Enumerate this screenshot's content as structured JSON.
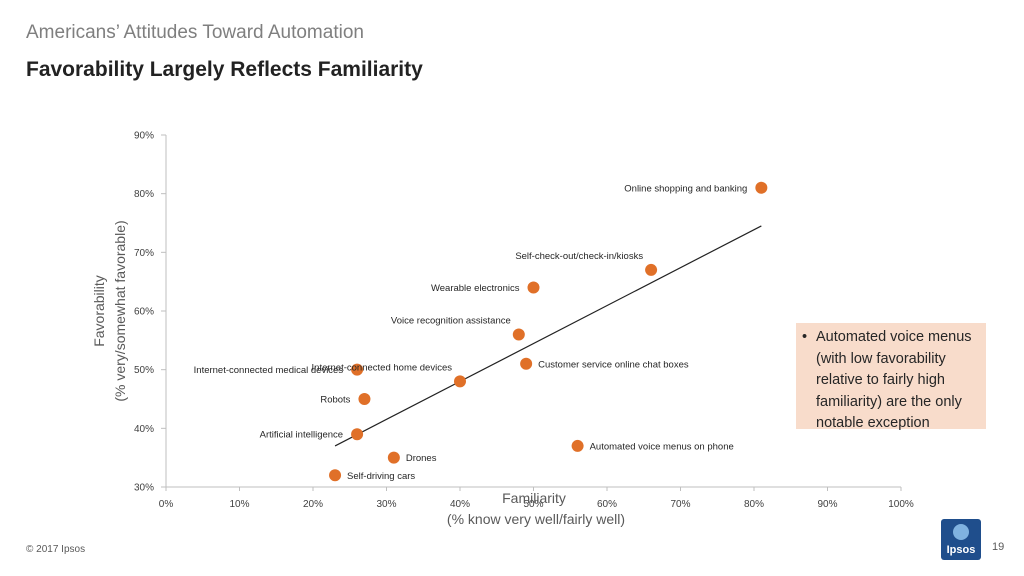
{
  "header": {
    "kicker": "Americans’ Attitudes Toward Automation",
    "title": "Favorability Largely Reflects Familiarity"
  },
  "callout": {
    "text": "Automated voice menus (with low favorability relative to fairly high familiarity) are the only notable exception"
  },
  "footer": {
    "copyright": "© 2017 Ipsos",
    "page": "19",
    "logo_text": "Ipsos"
  },
  "colors": {
    "point": "#e07028",
    "trend": "#222222",
    "axis": "#bfbfbf",
    "callout_bg": "#f8dccb"
  },
  "chart_data": {
    "type": "scatter",
    "xlabel": "Familiarity",
    "xlabel_sub": "(% know very well/fairly well)",
    "ylabel": "Favorability",
    "ylabel_sub": "(% very/somewhat favorable)",
    "xlim": [
      0,
      100
    ],
    "ylim": [
      30,
      90
    ],
    "xticks": [
      {
        "v": 0,
        "label": "0%"
      },
      {
        "v": 10,
        "label": "10%"
      },
      {
        "v": 20,
        "label": "20%"
      },
      {
        "v": 30,
        "label": "30%"
      },
      {
        "v": 40,
        "label": "40%"
      },
      {
        "v": 50,
        "label": "50%"
      },
      {
        "v": 60,
        "label": "60%"
      },
      {
        "v": 70,
        "label": "70%"
      },
      {
        "v": 80,
        "label": "80%"
      },
      {
        "v": 90,
        "label": "90%"
      },
      {
        "v": 100,
        "label": "100%"
      }
    ],
    "yticks": [
      {
        "v": 30,
        "label": "30%"
      },
      {
        "v": 40,
        "label": "40%"
      },
      {
        "v": 50,
        "label": "50%"
      },
      {
        "v": 60,
        "label": "60%"
      },
      {
        "v": 70,
        "label": "70%"
      },
      {
        "v": 80,
        "label": "80%"
      },
      {
        "v": 90,
        "label": "90%"
      }
    ],
    "grid": false,
    "points": [
      {
        "label": "Online shopping and banking",
        "x": 81,
        "y": 81,
        "label_side": "left"
      },
      {
        "label": "Self-check-out/check-in/kiosks",
        "x": 66,
        "y": 67,
        "label_side": "above-left"
      },
      {
        "label": "Wearable electronics",
        "x": 50,
        "y": 64,
        "label_side": "left"
      },
      {
        "label": "Voice recognition assistance",
        "x": 48,
        "y": 56,
        "label_side": "above-left"
      },
      {
        "label": "Customer service online chat boxes",
        "x": 49,
        "y": 51,
        "label_side": "right"
      },
      {
        "label": "Internet-connected home devices",
        "x": 40,
        "y": 48,
        "label_side": "above-left"
      },
      {
        "label": "Internet-connected medical devices",
        "x": 26,
        "y": 50,
        "label_side": "left"
      },
      {
        "label": "Robots",
        "x": 27,
        "y": 45,
        "label_side": "left"
      },
      {
        "label": "Artificial intelligence",
        "x": 26,
        "y": 39,
        "label_side": "left"
      },
      {
        "label": "Automated voice menus on phone",
        "x": 56,
        "y": 37,
        "label_side": "right"
      },
      {
        "label": "Drones",
        "x": 31,
        "y": 35,
        "label_side": "right"
      },
      {
        "label": "Self-driving cars",
        "x": 23,
        "y": 32,
        "label_side": "right"
      }
    ],
    "trendline": {
      "x1": 23,
      "y1": 37,
      "x2": 81,
      "y2": 74.5
    }
  }
}
